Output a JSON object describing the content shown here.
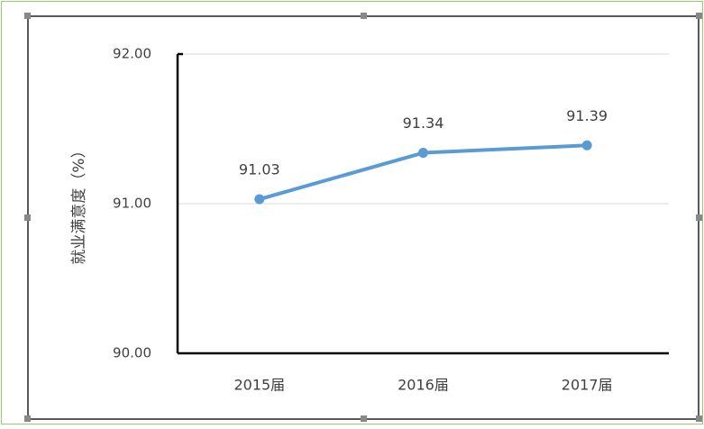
{
  "chart_data": {
    "type": "line",
    "y_label": "就业满意度（%）",
    "categories": [
      "2015届",
      "2016届",
      "2017届"
    ],
    "series": [
      {
        "name": null,
        "color": "#5b9bd5",
        "values": [
          91.03,
          91.34,
          91.39
        ]
      }
    ],
    "ylim": [
      90,
      92
    ],
    "yticks": [
      {
        "value": 90,
        "label": "90.00"
      },
      {
        "value": 91,
        "label": "91.00"
      },
      {
        "value": 92,
        "label": "92.00"
      }
    ],
    "grid": true
  }
}
